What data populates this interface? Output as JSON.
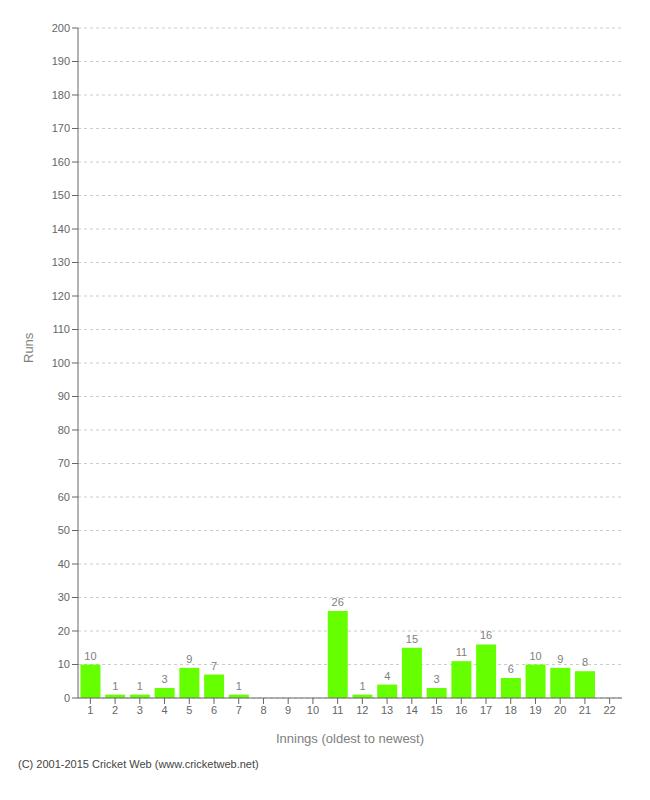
{
  "chart_data": {
    "type": "bar",
    "categories": [
      "1",
      "2",
      "3",
      "4",
      "5",
      "6",
      "7",
      "8",
      "9",
      "10",
      "11",
      "12",
      "13",
      "14",
      "15",
      "16",
      "17",
      "18",
      "19",
      "20",
      "21",
      "22"
    ],
    "values": [
      10,
      1,
      1,
      3,
      9,
      7,
      1,
      0,
      0,
      0,
      26,
      1,
      4,
      15,
      3,
      11,
      16,
      6,
      10,
      9,
      8,
      0
    ],
    "color": "#66ff00",
    "xlabel": "Innings (oldest to newest)",
    "ylabel": "Runs",
    "ylim": [
      0,
      200
    ],
    "yticks": [
      0,
      10,
      20,
      30,
      40,
      50,
      60,
      70,
      80,
      90,
      100,
      110,
      120,
      130,
      140,
      150,
      160,
      170,
      180,
      190,
      200
    ],
    "grid": true,
    "data_labels": true,
    "annotations": [
      "(C) 2001-2015 Cricket Web (www.cricketweb.net)"
    ]
  }
}
